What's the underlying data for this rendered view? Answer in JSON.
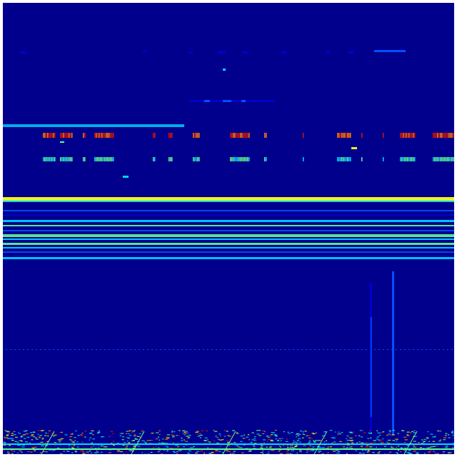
{
  "spectrogram": {
    "colormap": "jet",
    "colors": {
      "background": "#00008c",
      "low": "#0000d0",
      "mid_blue": "#0050ff",
      "cyan": "#00d8ff",
      "green": "#60ff90",
      "yellow": "#f0f020",
      "orange": "#ff7a00",
      "red": "#e01000"
    }
  }
}
